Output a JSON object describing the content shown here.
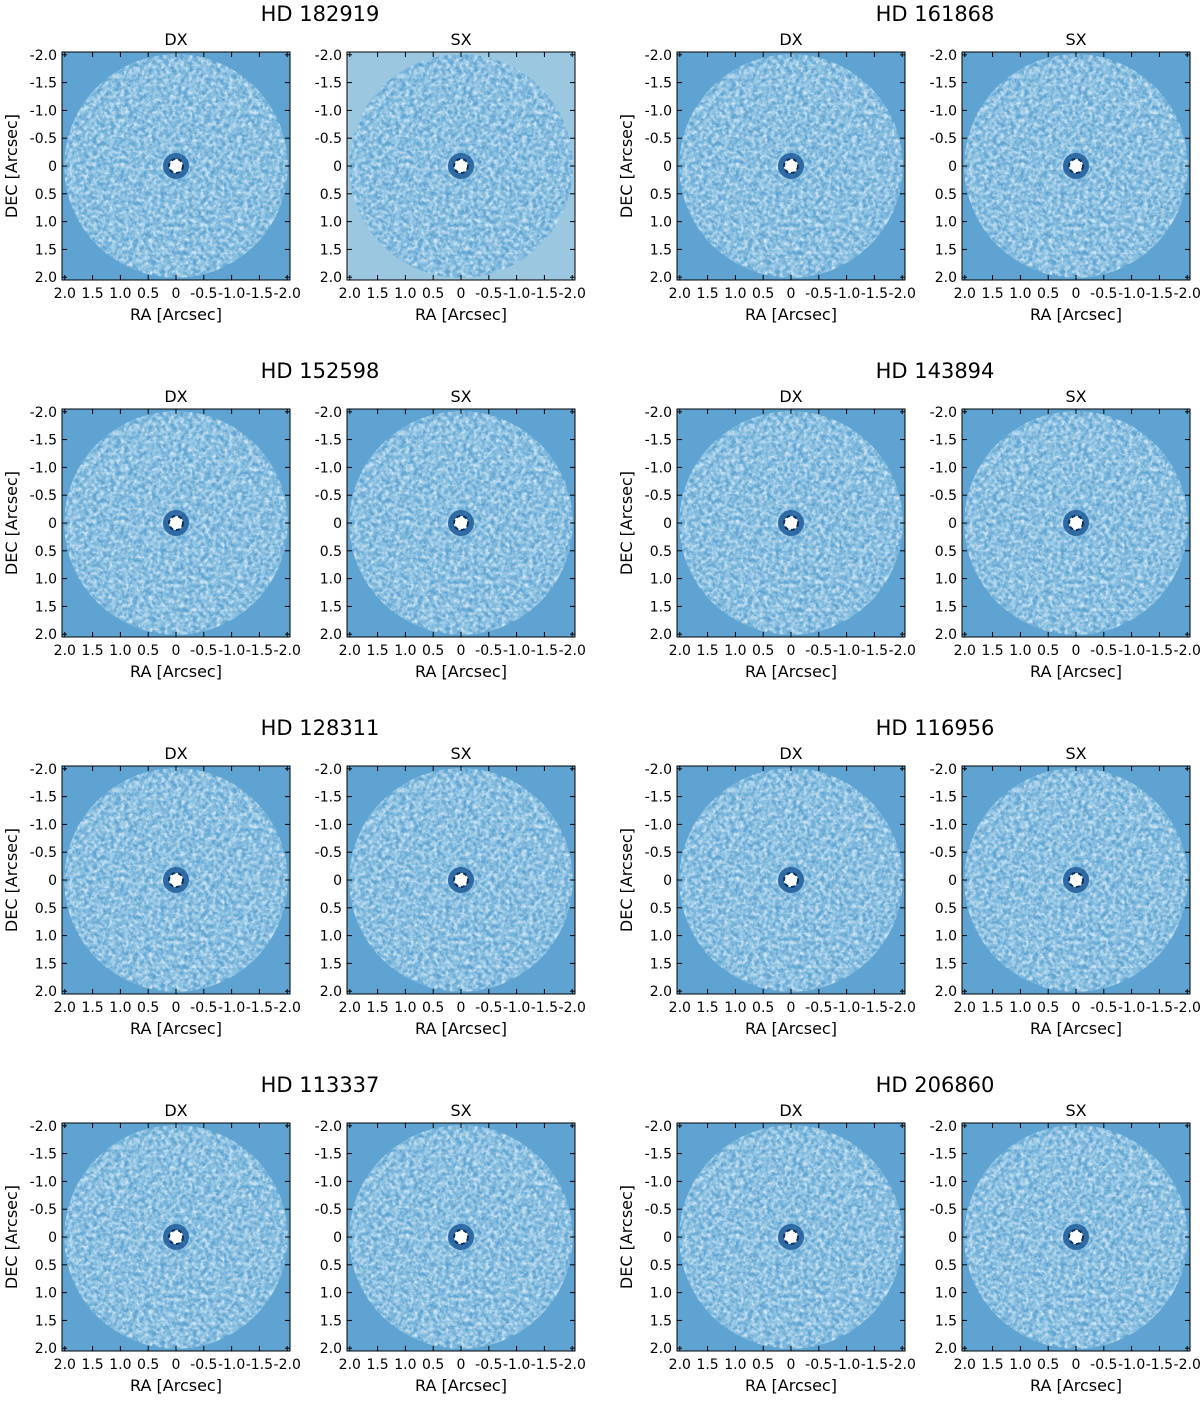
{
  "colors": {
    "background_field": "#5ea3d2",
    "light_halo": "#9bc7e1",
    "dark_speckle": "#1f5c9a",
    "light_speckle": "#d6e8f4"
  },
  "labels": {
    "xlabel": "RA [Arcsec]",
    "ylabel": "DEC [Arcsec]"
  },
  "axis": {
    "x_ticks": [
      "2.0",
      "1.5",
      "1.0",
      "0.5",
      "0",
      "-0.5",
      "-1.0",
      "-1.5",
      "-2.0"
    ],
    "y_ticks": [
      "-2.0",
      "-1.5",
      "-1.0",
      "-0.5",
      "0",
      "0.5",
      "1.0",
      "1.5",
      "2.0"
    ]
  },
  "groups": [
    {
      "star": "HD 182919",
      "panels": [
        {
          "title": "DX"
        },
        {
          "title": "SX"
        }
      ]
    },
    {
      "star": "HD 161868",
      "panels": [
        {
          "title": "DX"
        },
        {
          "title": "SX"
        }
      ]
    },
    {
      "star": "HD 152598",
      "panels": [
        {
          "title": "DX"
        },
        {
          "title": "SX"
        }
      ]
    },
    {
      "star": "HD 143894",
      "panels": [
        {
          "title": "DX"
        },
        {
          "title": "SX"
        }
      ]
    },
    {
      "star": "HD 128311",
      "panels": [
        {
          "title": "DX"
        },
        {
          "title": "SX"
        }
      ]
    },
    {
      "star": "HD 116956",
      "panels": [
        {
          "title": "DX"
        },
        {
          "title": "SX"
        }
      ]
    },
    {
      "star": "HD 113337",
      "panels": [
        {
          "title": "DX"
        },
        {
          "title": "SX"
        }
      ]
    },
    {
      "star": "HD 206860",
      "panels": [
        {
          "title": "DX"
        },
        {
          "title": "SX"
        }
      ]
    }
  ]
}
